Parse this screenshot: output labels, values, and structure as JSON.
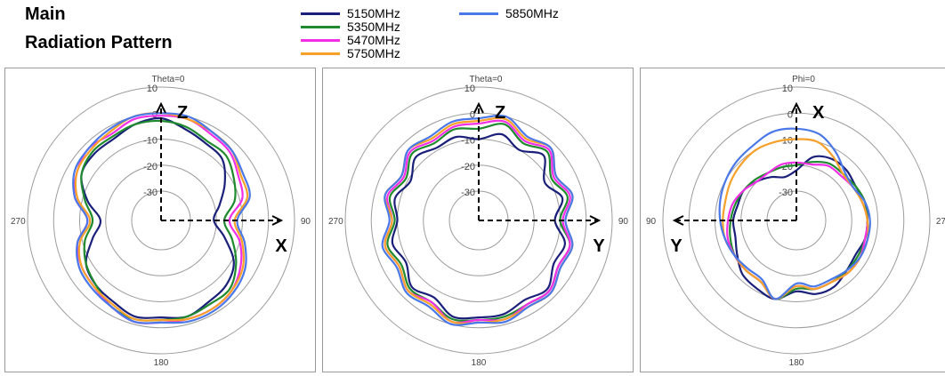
{
  "header": {
    "title_line1": "Main",
    "title_line2": "Radiation Pattern"
  },
  "legend": [
    {
      "label": "5150MHz",
      "color": "#1a1f7a"
    },
    {
      "label": "5350MHz",
      "color": "#1f8a2e"
    },
    {
      "label": "5470MHz",
      "color": "#f22ee6"
    },
    {
      "label": "5750MHz",
      "color": "#f7a12a"
    },
    {
      "label": "5850MHz",
      "color": "#4a78e8"
    }
  ],
  "chart_data": [
    {
      "type": "polar",
      "plane_label": "Theta=0",
      "rlim": [
        -30,
        10
      ],
      "rings": [
        -30,
        -20,
        -10,
        0,
        10
      ],
      "ring_labels": [
        "-30",
        "-20",
        "-10",
        "0",
        "10"
      ],
      "angle_labels": {
        "top": "",
        "right": "90",
        "bottom": "180",
        "left": "270"
      },
      "axis_labels": {
        "up": "Z",
        "right": "X"
      },
      "angles": [
        0,
        15,
        30,
        45,
        60,
        75,
        90,
        105,
        120,
        135,
        150,
        165,
        180,
        195,
        210,
        225,
        240,
        255,
        270,
        285,
        300,
        315,
        330,
        345
      ],
      "series": [
        {
          "name": "5150MHz",
          "values": [
            -2,
            -5,
            -7,
            -8,
            -13,
            -18,
            -21,
            -16,
            -9,
            -6,
            -5,
            -3,
            -4,
            -3,
            -5,
            -6,
            -8,
            -14,
            -18,
            -12,
            -6,
            -5,
            -5,
            -3
          ]
        },
        {
          "name": "5350MHz",
          "values": [
            -3,
            -4,
            -6,
            -6,
            -9,
            -12,
            -17,
            -13,
            -8,
            -4,
            -4,
            -3,
            -3,
            -2,
            -3,
            -6,
            -8,
            -11,
            -15,
            -11,
            -6,
            -4,
            -4,
            -3
          ]
        },
        {
          "name": "5470MHz",
          "values": [
            -1,
            -1,
            -3,
            -4,
            -7,
            -9,
            -15,
            -10,
            -6,
            -3,
            -2,
            -2,
            -2,
            -1,
            -3,
            -5,
            -6,
            -8,
            -13,
            -7,
            -4,
            -2,
            -3,
            -1
          ]
        },
        {
          "name": "5750MHz",
          "values": [
            0,
            -1,
            -2,
            -3,
            -6,
            -7,
            -13,
            -9,
            -5,
            -3,
            -2,
            -2,
            -3,
            -2,
            -4,
            -5,
            -6,
            -9,
            -14,
            -8,
            -4,
            -3,
            -2,
            0
          ]
        },
        {
          "name": "5850MHz",
          "values": [
            0,
            0,
            -2,
            -3,
            -5,
            -6,
            -12,
            -8,
            -4,
            -2,
            -1,
            -1,
            -2,
            -1,
            -3,
            -4,
            -5,
            -8,
            -13,
            -7,
            -3,
            -2,
            -1,
            0
          ]
        }
      ]
    },
    {
      "type": "polar",
      "plane_label": "Theta=0",
      "rlim": [
        -30,
        10
      ],
      "rings": [
        -30,
        -20,
        -10,
        0,
        10
      ],
      "ring_labels": [
        "-30",
        "-20",
        "-10",
        "0",
        "10"
      ],
      "angle_labels": {
        "top": "",
        "right": "90",
        "bottom": "180",
        "left": "270"
      },
      "axis_labels": {
        "up": "Z",
        "right": "Y"
      },
      "angles": [
        0,
        15,
        30,
        45,
        60,
        75,
        90,
        105,
        120,
        135,
        150,
        165,
        180,
        195,
        210,
        225,
        240,
        255,
        270,
        285,
        300,
        315,
        330,
        345
      ],
      "series": [
        {
          "name": "5150MHz",
          "values": [
            -10,
            -7,
            -10,
            -6,
            -12,
            -8,
            -12,
            -7,
            -8,
            -4,
            -6,
            -4,
            -4,
            -3,
            -7,
            -5,
            -9,
            -7,
            -10,
            -8,
            -11,
            -7,
            -9,
            -8
          ]
        },
        {
          "name": "5350MHz",
          "values": [
            -6,
            -3,
            -7,
            -4,
            -9,
            -6,
            -10,
            -5,
            -6,
            -3,
            -4,
            -3,
            -3,
            -2,
            -5,
            -4,
            -7,
            -5,
            -9,
            -6,
            -9,
            -5,
            -7,
            -5
          ]
        },
        {
          "name": "5470MHz",
          "values": [
            -4,
            -2,
            -6,
            -3,
            -8,
            -5,
            -9,
            -5,
            -6,
            -3,
            -4,
            -2,
            -3,
            -1,
            -5,
            -3,
            -6,
            -4,
            -8,
            -5,
            -8,
            -4,
            -6,
            -4
          ]
        },
        {
          "name": "5750MHz",
          "values": [
            -3,
            -1,
            -5,
            -2,
            -7,
            -4,
            -8,
            -4,
            -5,
            -2,
            -3,
            -2,
            -2,
            -1,
            -4,
            -3,
            -6,
            -4,
            -8,
            -4,
            -7,
            -3,
            -5,
            -3
          ]
        },
        {
          "name": "5850MHz",
          "values": [
            -2,
            0,
            -4,
            -2,
            -7,
            -4,
            -8,
            -4,
            -5,
            -2,
            -3,
            -1,
            -2,
            0,
            -3,
            -2,
            -5,
            -3,
            -7,
            -4,
            -7,
            -3,
            -4,
            -2
          ]
        }
      ]
    },
    {
      "type": "polar",
      "plane_label": "Phi=0",
      "rlim": [
        -30,
        10
      ],
      "rings": [
        -30,
        -20,
        -10,
        0,
        10
      ],
      "ring_labels": [
        "-30",
        "-20",
        "-10",
        "0",
        "10"
      ],
      "angle_labels": {
        "top": "",
        "right": "27",
        "bottom": "180",
        "left": "90"
      },
      "axis_labels": {
        "up": "X",
        "left": "Y"
      },
      "angles": [
        0,
        15,
        30,
        45,
        60,
        75,
        90,
        105,
        120,
        135,
        150,
        165,
        180,
        195,
        210,
        225,
        240,
        255,
        270,
        285,
        300,
        315,
        330,
        345
      ],
      "series": [
        {
          "name": "5150MHz",
          "values": [
            -22,
            -16,
            -14,
            -14,
            -15,
            -14,
            -14,
            -14,
            -15,
            -14,
            -12,
            -12,
            -14,
            -10,
            -11,
            -12,
            -15,
            -17,
            -17,
            -18,
            -18,
            -20,
            -22,
            -24
          ]
        },
        {
          "name": "5350MHz",
          "values": [
            -20,
            -18,
            -16,
            -16,
            -15,
            -14,
            -14,
            -14,
            -14,
            -14,
            -14,
            -14,
            -15,
            -10,
            -14,
            -14,
            -14,
            -15,
            -16,
            -17,
            -18,
            -19,
            -20,
            -20
          ]
        },
        {
          "name": "5470MHz",
          "values": [
            -19,
            -19,
            -17,
            -17,
            -16,
            -15,
            -14,
            -14,
            -13,
            -13,
            -14,
            -14,
            -16,
            -10,
            -14,
            -14,
            -14,
            -14,
            -15,
            -16,
            -18,
            -20,
            -20,
            -19
          ]
        },
        {
          "name": "5750MHz",
          "values": [
            -10,
            -10,
            -13,
            -16,
            -16,
            -15,
            -14,
            -13,
            -13,
            -13,
            -14,
            -14,
            -16,
            -10,
            -14,
            -14,
            -14,
            -13,
            -13,
            -13,
            -12,
            -11,
            -10,
            -10
          ]
        },
        {
          "name": "5850MHz",
          "values": [
            -6,
            -7,
            -11,
            -15,
            -16,
            -14,
            -13,
            -13,
            -13,
            -14,
            -15,
            -15,
            -17,
            -10,
            -15,
            -15,
            -14,
            -13,
            -12,
            -11,
            -10,
            -9,
            -8,
            -6
          ]
        }
      ]
    }
  ]
}
